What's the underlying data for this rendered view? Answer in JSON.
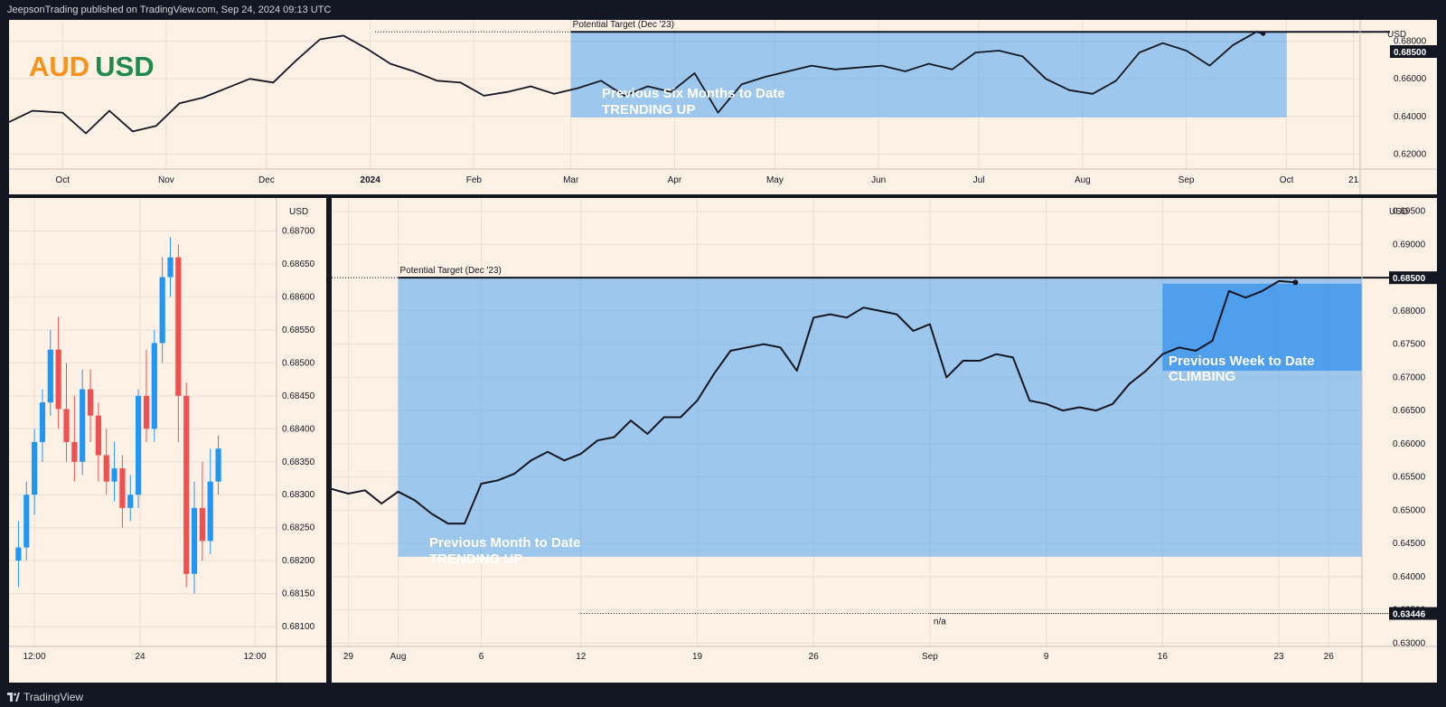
{
  "header": {
    "published": "JeepsonTrading published on TradingView.com, Sep 24, 2024 09:13 UTC"
  },
  "footer": {
    "brand": "TradingView"
  },
  "symbol": {
    "base": "AUD",
    "quote": "USD"
  },
  "colors": {
    "background": "#fdf1e6",
    "frame": "#131722",
    "zone": "#4ea4f0",
    "zone_strong": "#2f8fee",
    "line": "#131722",
    "up": "#2196f3",
    "down": "#f0504f"
  },
  "chart_data": [
    {
      "type": "line",
      "panel": "top",
      "ylabel": "USD",
      "y_ticks": [
        "0.62000",
        "0.64000",
        "0.66000",
        "0.68000"
      ],
      "ylim": [
        0.612,
        0.6875
      ],
      "x_ticks": [
        "Oct",
        "Nov",
        "Dec",
        "2024",
        "Feb",
        "Mar",
        "Apr",
        "May",
        "Jun",
        "Jul",
        "Aug",
        "Sep",
        "Oct",
        "21"
      ],
      "price_label": "0.68500",
      "price": 0.685,
      "target_label": "Potential Target (Dec '23)",
      "zone_label_1": "Previous Six Months to Date",
      "zone_label_2": "TRENDING UP",
      "x_range": [
        "2023-09-15",
        "2024-10-23"
      ],
      "zone": {
        "x": [
          "2024-03-01",
          "2024-10-01"
        ],
        "y": [
          0.6395,
          0.685
        ]
      },
      "series": [
        {
          "x": [
            "2023-09-15",
            "2023-09-22",
            "2023-10-01",
            "2023-10-08",
            "2023-10-15",
            "2023-10-22",
            "2023-10-29",
            "2023-11-05",
            "2023-11-12",
            "2023-11-19",
            "2023-11-26",
            "2023-12-03",
            "2023-12-10",
            "2023-12-17",
            "2023-12-24",
            "2023-12-31",
            "2024-01-07",
            "2024-01-14",
            "2024-01-21",
            "2024-01-28",
            "2024-02-04",
            "2024-02-11",
            "2024-02-18",
            "2024-02-25",
            "2024-03-03",
            "2024-03-10",
            "2024-03-17",
            "2024-03-24",
            "2024-03-31",
            "2024-04-07",
            "2024-04-14",
            "2024-04-21",
            "2024-04-28",
            "2024-05-05",
            "2024-05-12",
            "2024-05-19",
            "2024-05-26",
            "2024-06-02",
            "2024-06-09",
            "2024-06-16",
            "2024-06-23",
            "2024-06-30",
            "2024-07-07",
            "2024-07-14",
            "2024-07-21",
            "2024-07-28",
            "2024-08-04",
            "2024-08-11",
            "2024-08-18",
            "2024-08-25",
            "2024-09-01",
            "2024-09-08",
            "2024-09-15",
            "2024-09-22",
            "2024-09-24"
          ],
          "values": [
            0.637,
            0.643,
            0.642,
            0.631,
            0.643,
            0.632,
            0.635,
            0.647,
            0.65,
            0.655,
            0.66,
            0.658,
            0.67,
            0.681,
            0.683,
            0.676,
            0.668,
            0.664,
            0.659,
            0.658,
            0.651,
            0.653,
            0.656,
            0.652,
            0.655,
            0.659,
            0.651,
            0.656,
            0.653,
            0.663,
            0.642,
            0.657,
            0.661,
            0.664,
            0.667,
            0.665,
            0.666,
            0.667,
            0.664,
            0.668,
            0.665,
            0.674,
            0.675,
            0.672,
            0.66,
            0.654,
            0.652,
            0.659,
            0.674,
            0.679,
            0.675,
            0.667,
            0.678,
            0.685,
            0.684
          ]
        }
      ]
    },
    {
      "type": "candlestick",
      "panel": "left",
      "ylabel": "USD",
      "y_ticks": [
        "0.68100",
        "0.68150",
        "0.68200",
        "0.68250",
        "0.68300",
        "0.68350",
        "0.68400",
        "0.68450",
        "0.68500",
        "0.68550",
        "0.68600",
        "0.68650",
        "0.68700"
      ],
      "ylim": [
        0.6807,
        0.6875
      ],
      "x_ticks": [
        "12:00",
        "24",
        "12:00"
      ],
      "candles": [
        [
          0.682,
          0.6826,
          0.6816,
          0.6822
        ],
        [
          0.6822,
          0.6832,
          0.682,
          0.683
        ],
        [
          0.683,
          0.684,
          0.6827,
          0.6838
        ],
        [
          0.6838,
          0.6846,
          0.6835,
          0.6844
        ],
        [
          0.6844,
          0.6855,
          0.6842,
          0.6852
        ],
        [
          0.6852,
          0.6857,
          0.684,
          0.6843
        ],
        [
          0.6843,
          0.685,
          0.6835,
          0.6838
        ],
        [
          0.6838,
          0.6845,
          0.6832,
          0.6835
        ],
        [
          0.6835,
          0.6849,
          0.6833,
          0.6846
        ],
        [
          0.6846,
          0.6849,
          0.6838,
          0.6842
        ],
        [
          0.6842,
          0.6844,
          0.6832,
          0.6836
        ],
        [
          0.6836,
          0.684,
          0.683,
          0.6832
        ],
        [
          0.6832,
          0.6838,
          0.6829,
          0.6834
        ],
        [
          0.6834,
          0.6836,
          0.6825,
          0.6828
        ],
        [
          0.6828,
          0.6833,
          0.6826,
          0.683
        ],
        [
          0.683,
          0.6846,
          0.6828,
          0.6845
        ],
        [
          0.6845,
          0.6852,
          0.6838,
          0.684
        ],
        [
          0.684,
          0.6855,
          0.6838,
          0.6853
        ],
        [
          0.6853,
          0.6866,
          0.685,
          0.6863
        ],
        [
          0.6863,
          0.6869,
          0.686,
          0.6866
        ],
        [
          0.6866,
          0.6868,
          0.6838,
          0.6845
        ],
        [
          0.6845,
          0.6847,
          0.6816,
          0.6818
        ],
        [
          0.6818,
          0.6832,
          0.6815,
          0.6828
        ],
        [
          0.6828,
          0.6835,
          0.682,
          0.6823
        ],
        [
          0.6823,
          0.6837,
          0.6821,
          0.6832
        ],
        [
          0.6832,
          0.6839,
          0.683,
          0.6837
        ]
      ]
    },
    {
      "type": "line",
      "panel": "main",
      "ylabel": "USD",
      "y_ticks": [
        "0.63000",
        "0.63500",
        "0.64000",
        "0.64500",
        "0.65000",
        "0.65500",
        "0.66000",
        "0.66500",
        "0.67000",
        "0.67500",
        "0.68000",
        "0.68500",
        "0.69000",
        "0.69500"
      ],
      "ylim": [
        0.6295,
        0.697
      ],
      "x_ticks": [
        "29",
        "Aug",
        "6",
        "12",
        "19",
        "26",
        "Sep",
        "9",
        "16",
        "23",
        "26"
      ],
      "x_range": [
        "2024-07-28",
        "2024-09-28"
      ],
      "price_label": "0.68500",
      "price": 0.685,
      "low_label": "0.63446",
      "low": 0.63446,
      "na_label": "n/a",
      "target_label": "Potential Target (Dec '23)",
      "zone_month": {
        "label_1": "Previous Month to Date",
        "label_2": "TRENDING UP",
        "x": [
          "2024-08-01",
          "2024-09-24"
        ],
        "y": [
          0.643,
          0.685
        ]
      },
      "zone_week": {
        "label_1": "Previous Week to Date",
        "label_2": "CLIMBING",
        "x": [
          "2024-09-16",
          "2024-09-24"
        ],
        "y": [
          0.671,
          0.6841
        ]
      },
      "series": [
        {
          "x": [
            "2024-07-28",
            "2024-07-29",
            "2024-07-30",
            "2024-07-31",
            "2024-08-01",
            "2024-08-02",
            "2024-08-03",
            "2024-08-04",
            "2024-08-05",
            "2024-08-06",
            "2024-08-07",
            "2024-08-08",
            "2024-08-09",
            "2024-08-10",
            "2024-08-11",
            "2024-08-12",
            "2024-08-13",
            "2024-08-14",
            "2024-08-15",
            "2024-08-16",
            "2024-08-17",
            "2024-08-18",
            "2024-08-19",
            "2024-08-20",
            "2024-08-21",
            "2024-08-22",
            "2024-08-23",
            "2024-08-24",
            "2024-08-25",
            "2024-08-26",
            "2024-08-27",
            "2024-08-28",
            "2024-08-29",
            "2024-08-30",
            "2024-08-31",
            "2024-09-01",
            "2024-09-02",
            "2024-09-03",
            "2024-09-04",
            "2024-09-05",
            "2024-09-06",
            "2024-09-07",
            "2024-09-08",
            "2024-09-09",
            "2024-09-10",
            "2024-09-11",
            "2024-09-12",
            "2024-09-13",
            "2024-09-14",
            "2024-09-15",
            "2024-09-16",
            "2024-09-17",
            "2024-09-18",
            "2024-09-19",
            "2024-09-20",
            "2024-09-21",
            "2024-09-22",
            "2024-09-23",
            "2024-09-24"
          ],
          "values": [
            0.6532,
            0.6525,
            0.653,
            0.651,
            0.6528,
            0.6515,
            0.6495,
            0.648,
            0.648,
            0.654,
            0.6545,
            0.6555,
            0.6575,
            0.6588,
            0.6575,
            0.6585,
            0.6605,
            0.661,
            0.6635,
            0.6615,
            0.664,
            0.664,
            0.6665,
            0.6705,
            0.674,
            0.6745,
            0.675,
            0.6745,
            0.671,
            0.679,
            0.6795,
            0.679,
            0.6805,
            0.68,
            0.6795,
            0.677,
            0.678,
            0.67,
            0.6725,
            0.6725,
            0.6735,
            0.673,
            0.6665,
            0.666,
            0.665,
            0.6655,
            0.665,
            0.666,
            0.669,
            0.671,
            0.6735,
            0.6745,
            0.674,
            0.6755,
            0.683,
            0.682,
            0.683,
            0.6845,
            0.6843
          ]
        }
      ]
    }
  ]
}
